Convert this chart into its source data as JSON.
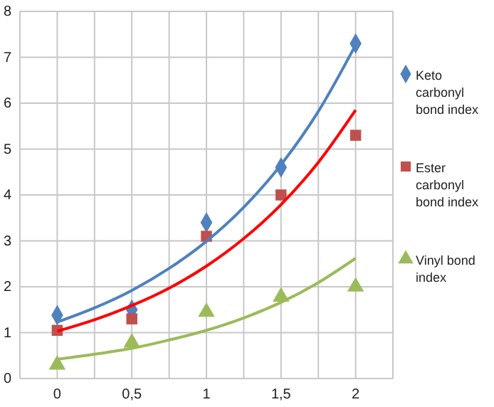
{
  "chart_data": {
    "type": "scatter",
    "x": [
      0,
      0.5,
      1,
      1.5,
      2
    ],
    "series": [
      {
        "name": "Keto carbonyl bond index",
        "color": "#4f81bd",
        "marker": "diamond",
        "values": [
          1.38,
          1.5,
          3.4,
          4.6,
          7.3
        ]
      },
      {
        "name": "Ester carbonyl bond index",
        "color": "#c0504d",
        "marker": "square",
        "values": [
          1.05,
          1.3,
          3.1,
          4.0,
          5.3
        ]
      },
      {
        "name": "Vinyl bond index",
        "color": "#9bbb59",
        "marker": "triangle",
        "values": [
          0.3,
          0.78,
          1.45,
          1.78,
          2.0
        ]
      },
      {
        "type": "line",
        "color": "#4f81bd",
        "x": [
          0,
          0.25,
          0.5,
          0.75,
          1,
          1.25,
          1.5,
          1.75,
          2
        ],
        "values": [
          1.23,
          1.54,
          1.92,
          2.4,
          2.99,
          3.73,
          4.66,
          5.82,
          7.27
        ]
      },
      {
        "type": "line",
        "color": "#ff0000",
        "x": [
          0,
          0.25,
          0.5,
          0.75,
          1,
          1.25,
          1.5,
          1.75,
          2
        ],
        "values": [
          1.03,
          1.28,
          1.59,
          1.97,
          2.45,
          3.05,
          3.79,
          4.71,
          5.85
        ]
      },
      {
        "type": "line",
        "color": "#9bbb59",
        "x": [
          0,
          0.25,
          0.5,
          0.75,
          1,
          1.25,
          1.5,
          1.75,
          2
        ],
        "values": [
          0.42,
          0.53,
          0.66,
          0.84,
          1.05,
          1.32,
          1.66,
          2.09,
          2.62
        ]
      }
    ],
    "xlim": [
      -0.25,
      2.25
    ],
    "xticks": [
      {
        "value": -0.25,
        "label": null
      },
      0,
      {
        "value": 0.25,
        "label": null
      },
      {
        "value": 0.5,
        "label": "0,5"
      },
      {
        "value": 0.75,
        "label": null
      },
      1,
      {
        "value": 1.25,
        "label": null
      },
      {
        "value": 1.5,
        "label": "1,5"
      },
      {
        "value": 1.75,
        "label": null
      },
      2,
      {
        "value": 2.25,
        "label": null
      }
    ],
    "ylim": [
      0,
      8
    ],
    "yticks": [
      0,
      1,
      2,
      3,
      4,
      5,
      6,
      7,
      8
    ],
    "grid": true,
    "legend": "right"
  }
}
